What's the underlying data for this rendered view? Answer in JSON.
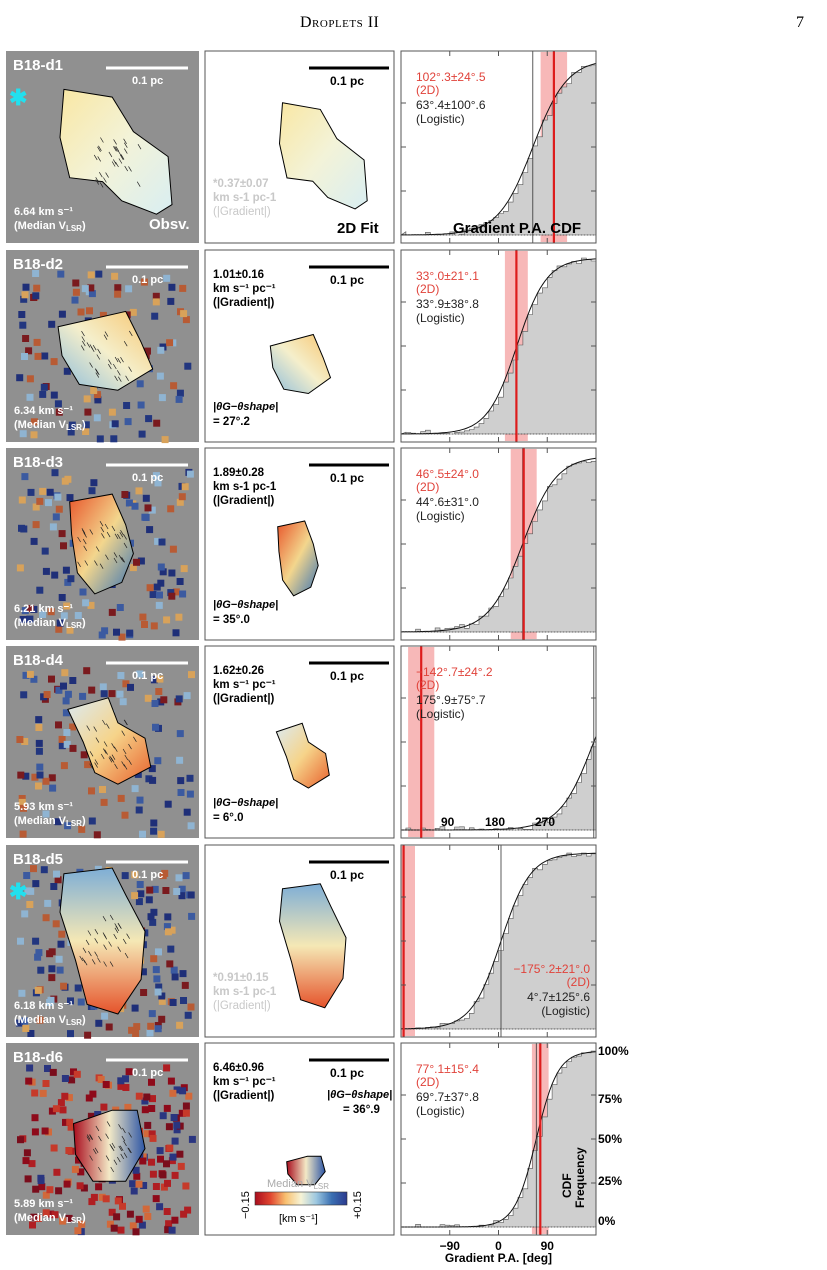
{
  "header": {
    "running_title": "Droplets II",
    "page_number": "7"
  },
  "rows": [
    {
      "id": "B18-d1",
      "star": true,
      "vlsr": "6.64 km s⁻¹",
      "vlsr_note": "(Median V",
      "vlsr_sub": "LSR",
      "obs_label": "Obsv.",
      "grad": "*0.37±0.07",
      "grad_unit": "km s-1 pc-1",
      "grad_note": "(|Gradient|)",
      "grad_muted": true,
      "fit_label": "2D Fit",
      "theta": "",
      "pa2d": "102°.3±24°.5",
      "pa2d_note": "(2D)",
      "palog": "63°.4±100°.6",
      "palog_note": "(Logistic)",
      "cdf_label": "Gradient P.A. CDF",
      "pa_value": 102.3,
      "pa_err": 24.5,
      "logistic_center": 63.4
    },
    {
      "id": "B18-d2",
      "star": false,
      "vlsr": "6.34 km s⁻¹",
      "vlsr_note": "(Median V",
      "vlsr_sub": "LSR",
      "grad": "1.01±0.16",
      "grad_unit": "km s⁻¹ pc⁻¹",
      "grad_note": "(|Gradient|)",
      "grad_muted": false,
      "theta": "= 27°.2",
      "pa2d": "33°.0±21°.1",
      "pa2d_note": "(2D)",
      "palog": "33°.9±38°.8",
      "palog_note": "(Logistic)",
      "pa_value": 33.0,
      "pa_err": 21.1,
      "logistic_center": 33.9
    },
    {
      "id": "B18-d3",
      "star": false,
      "vlsr": "6.21 km s⁻¹",
      "vlsr_note": "(Median V",
      "vlsr_sub": "LSR",
      "grad": "1.89±0.28",
      "grad_unit": "km s-1 pc-1",
      "grad_note": "(|Gradient|)",
      "grad_muted": false,
      "theta": "= 35°.0",
      "pa2d": "46°.5±24°.0",
      "pa2d_note": "(2D)",
      "palog": "44°.6±31°.0",
      "palog_note": "(Logistic)",
      "pa_value": 46.5,
      "pa_err": 24.0,
      "logistic_center": 44.6
    },
    {
      "id": "B18-d4",
      "star": false,
      "vlsr": "5.93 km s⁻¹",
      "vlsr_note": "(Median V",
      "vlsr_sub": "LSR",
      "grad": "1.62±0.26",
      "grad_unit": "km s⁻¹ pc⁻¹",
      "grad_note": "(|Gradient|)",
      "grad_muted": false,
      "theta": "= 6°.0",
      "pa2d": "−142°.7±24°.2",
      "pa2d_note": "(2D)",
      "palog": "175°.9±75°.7",
      "palog_note": "(Logistic)",
      "ticks": [
        "90",
        "180",
        "270"
      ],
      "pa_value": 217.3,
      "pa_err": 24.2,
      "logistic_center": 175.9
    },
    {
      "id": "B18-d5",
      "star": true,
      "vlsr": "6.18 km s⁻¹",
      "vlsr_note": "(Median V",
      "vlsr_sub": "LSR",
      "grad": "*0.91±0.15",
      "grad_unit": "km s-1 pc-1",
      "grad_note": "(|Gradient|)",
      "grad_muted": true,
      "theta": "",
      "pa2d": "−175°.2±21°.0",
      "pa2d_note": "(2D)",
      "palog": "4°.7±125°.6",
      "palog_note": "(Logistic)",
      "pa_value": -175.2,
      "pa_err": 21.0,
      "logistic_center": 4.7
    },
    {
      "id": "B18-d6",
      "star": false,
      "vlsr": "5.89 km s⁻¹",
      "vlsr_note": "(Median V",
      "vlsr_sub": "LSR",
      "grad": "6.46±0.96",
      "grad_unit": "km s⁻¹ pc⁻¹",
      "grad_note": "(|Gradient|)",
      "grad_muted": false,
      "theta": "= 36°.9",
      "pa2d": "77°.1±15°.4",
      "pa2d_note": "(2D)",
      "palog": "69°.7±37°.8",
      "palog_note": "(Logistic)",
      "pa_value": 77.1,
      "pa_err": 15.4,
      "logistic_center": 69.7
    }
  ],
  "scale_bar_label": "0.1 pc",
  "theta_label": "|θG−θshape|",
  "colorbar": {
    "title": "Median V",
    "title_sub": "LSR",
    "min": "−0.15",
    "max": "+0.15",
    "unit": "[km s⁻¹]"
  },
  "right_axis": {
    "ticks": [
      "100%",
      "75%",
      "50%",
      "25%",
      "0%"
    ],
    "label_line1": "CDF",
    "label_line2": "Frequency"
  },
  "bottom_axis": {
    "ticks": [
      "−90",
      "0",
      "90"
    ],
    "label": "Gradient P.A. [deg]"
  },
  "colors": {
    "map_bg": "#909090",
    "cdf_fill": "#cfcfcf",
    "red": "#dd1c1c",
    "red_band": "#f4a0a0",
    "red_text": "#e0423a",
    "muted_text": "#c8c8c8",
    "star": "#22e0ee"
  }
}
